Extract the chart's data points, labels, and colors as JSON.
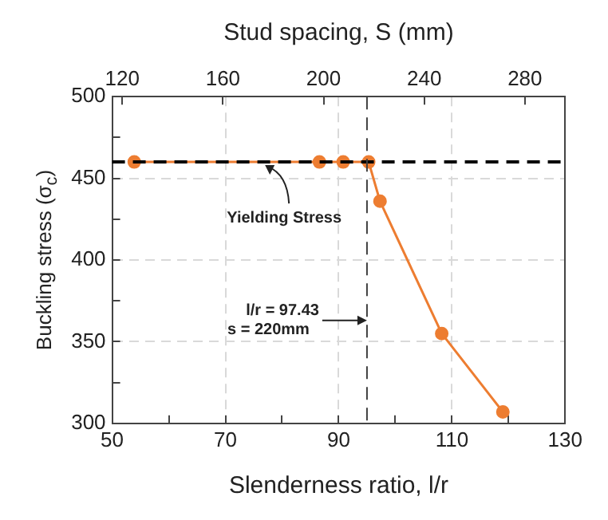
{
  "chart_data": {
    "type": "line",
    "xlabel": "Slenderness ratio, l/r",
    "x2label": "Stud spacing, S (mm)",
    "ylabel": "Buckling stress (σ$_{c}$)",
    "x": [
      53.9,
      86.6,
      90.8,
      95.3,
      97.3,
      108.2,
      119
    ],
    "series": [
      {
        "color": "#ed7d31",
        "values": [
          460,
          460,
          460,
          460,
          436,
          355,
          307
        ]
      }
    ],
    "xlim": [
      50,
      130
    ],
    "xticks": [
      50,
      {
        "value": 60,
        "label": null
      },
      70,
      {
        "value": 80,
        "label": null
      },
      90,
      {
        "value": 100,
        "label": null
      },
      110,
      {
        "value": 120,
        "label": null
      },
      130
    ],
    "x2lim": [
      116,
      296
    ],
    "x2ticks": [
      120,
      160,
      200,
      240,
      280
    ],
    "ylim": [
      300,
      500
    ],
    "yticks": [
      300,
      {
        "value": 325,
        "label": null
      },
      350,
      {
        "value": 375,
        "label": null
      },
      400,
      {
        "value": 425,
        "label": null
      },
      450,
      {
        "value": 475,
        "label": null
      },
      500
    ],
    "grid": true,
    "marker": "circle",
    "line_style": "solid",
    "ref_lines": [
      {
        "axis": "y",
        "value": 460,
        "color": "#000000",
        "line_style": "dashed"
      },
      {
        "axis": "x",
        "value": 95,
        "color": "#404040",
        "line_style": "dashed"
      }
    ],
    "annotations": [
      {
        "text": "Yielding Stress",
        "x": 77,
        "y": 460
      },
      {
        "text": "l/r = 97.43\ns = 220mm",
        "x": 95,
        "y": 363
      }
    ]
  }
}
